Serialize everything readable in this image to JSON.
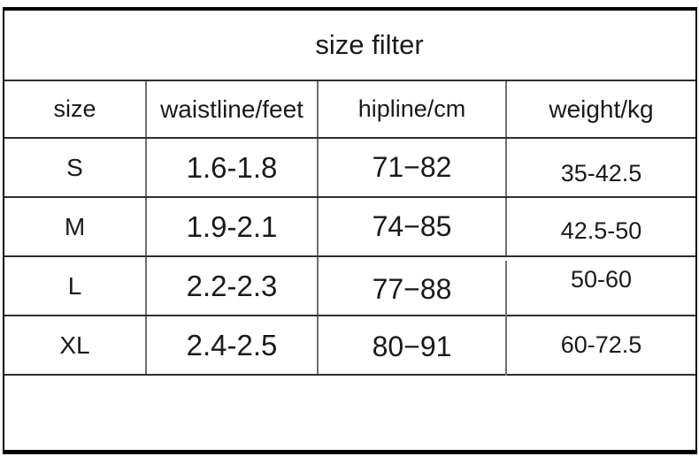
{
  "chart_data": {
    "type": "table",
    "title": "size filter",
    "columns": [
      "size",
      "waistline/feet",
      "hipline/cm",
      "weight/kg"
    ],
    "rows": [
      {
        "size": "S",
        "waistline": "1.6-1.8",
        "hipline": "71−82",
        "weight": "35-42.5"
      },
      {
        "size": "M",
        "waistline": "1.9-2.1",
        "hipline": "74−85",
        "weight": "42.5-50"
      },
      {
        "size": "L",
        "waistline": "2.2-2.3",
        "hipline": "77−88",
        "weight": "50-60"
      },
      {
        "size": "XL",
        "waistline": "2.4-2.5",
        "hipline": "80−91",
        "weight": "60-72.5"
      }
    ],
    "layout": {
      "legend": "none",
      "grid": "full-ruled-table",
      "title_row_spans_all_columns": true,
      "empty_footer_row": true
    }
  },
  "colors": {
    "background": "#ffffff",
    "text": "#1a1a1a",
    "outer_border": "#000000",
    "inner_horizontal_rule": "#2e2e2e",
    "inner_vertical_rule": "#6f6f6f"
  }
}
